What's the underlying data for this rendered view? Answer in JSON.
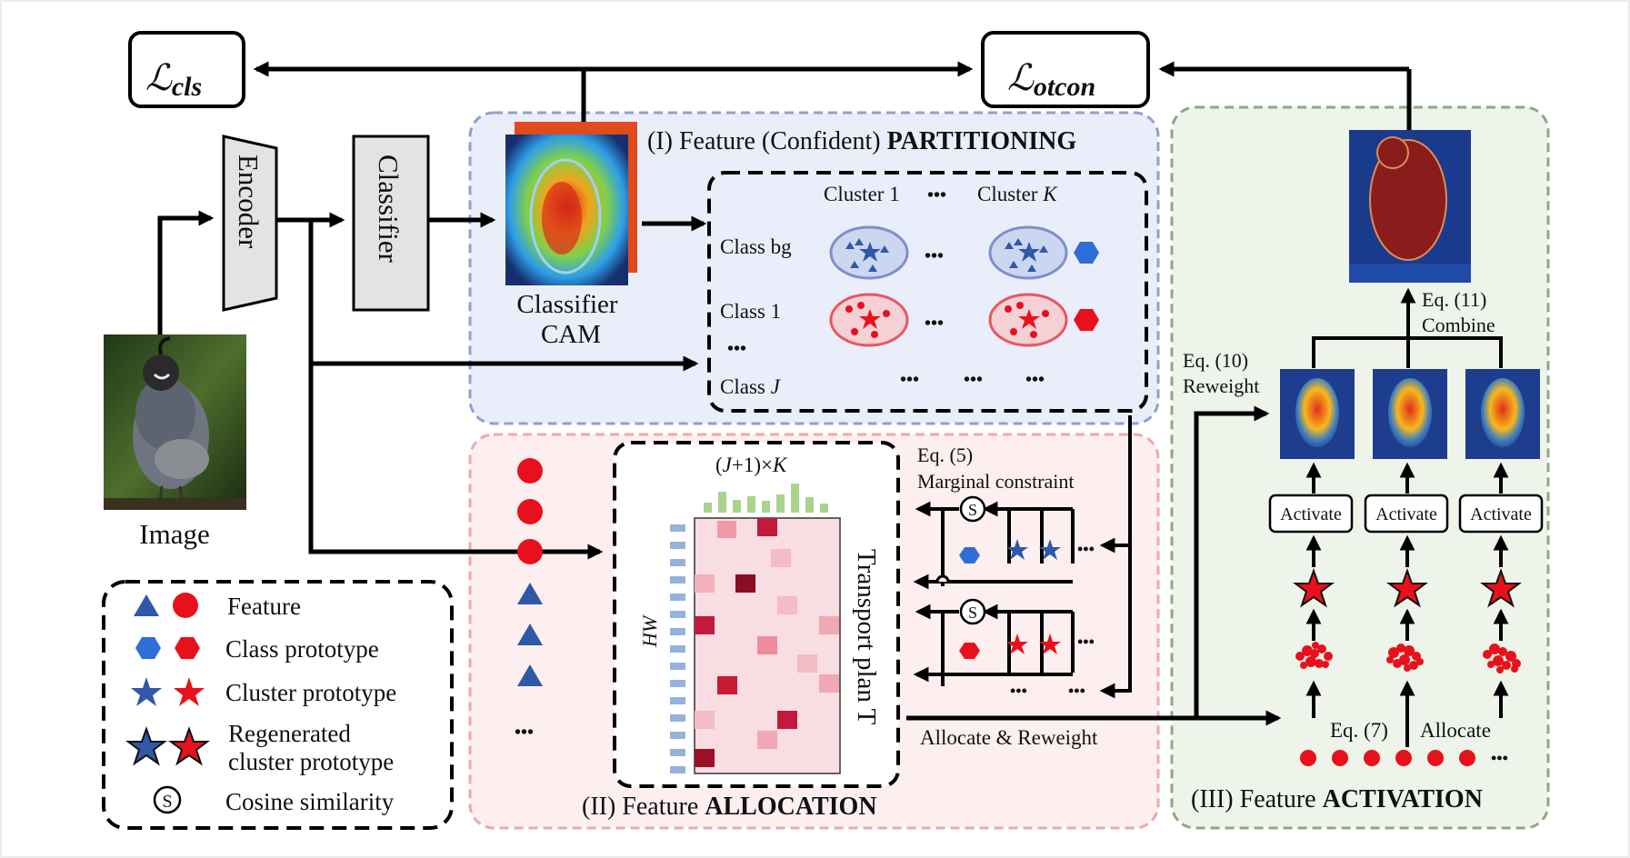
{
  "losses": {
    "cls_base": "ℒ",
    "cls_sub": "cls",
    "otcon_base": "ℒ",
    "otcon_sub": "otcon"
  },
  "pipeline": {
    "encoder": "Encoder",
    "classifier": "Classifier",
    "cam_line1": "Classifier",
    "cam_line2": "CAM",
    "image": "Image"
  },
  "partition": {
    "title_prefix": "(I) Feature (Confident) ",
    "title_bold": "PARTITIONING",
    "cluster1": "Cluster 1",
    "dots": "•••",
    "clusterK_prefix": "Cluster ",
    "clusterK_var": "K",
    "class_bg": "Class bg",
    "class_1": "Class  1",
    "class_dots": "•••",
    "class_J_prefix": "Class  ",
    "class_J_var": "J"
  },
  "allocation": {
    "title_prefix": "(II) Feature ",
    "title_bold": "ALLOCATION",
    "size_label": "(J+1)×K",
    "hw_label": "HW",
    "transport_label": "Transport plan T",
    "eq5": "Eq. (5)",
    "marginal": "Marginal constraint",
    "allocate_reweight": "Allocate & Reweight",
    "dots": "•••",
    "s_symbol": "S"
  },
  "activation": {
    "title_prefix": "(III) Feature ",
    "title_bold": "ACTIVATION",
    "eq11": "Eq. (11)",
    "combine": "Combine",
    "eq10": "Eq. (10)",
    "reweight": "Reweight",
    "activate": "Activate",
    "eq7": "Eq. (7)",
    "allocate": "Allocate",
    "dots": "•••"
  },
  "legend": {
    "feature": "Feature",
    "class_prototype": "Class prototype",
    "cluster_prototype": "Cluster prototype",
    "regen_line1": "Regenerated",
    "regen_line2": "cluster prototype",
    "cosine": "Cosine similarity",
    "s_symbol": "S"
  },
  "colors": {
    "blue": "#2f58a8",
    "red": "#e8111b",
    "panel1_fill": "#eaeefa",
    "panel1_border": "#8ea2cc",
    "panel2_fill": "#fdeff0",
    "panel2_border": "#f0a8aa",
    "panel3_fill": "#eef4ea",
    "panel3_border": "#8fa880",
    "matrix_fill": "#f8dde2",
    "hist_green": "#a9d48c"
  }
}
